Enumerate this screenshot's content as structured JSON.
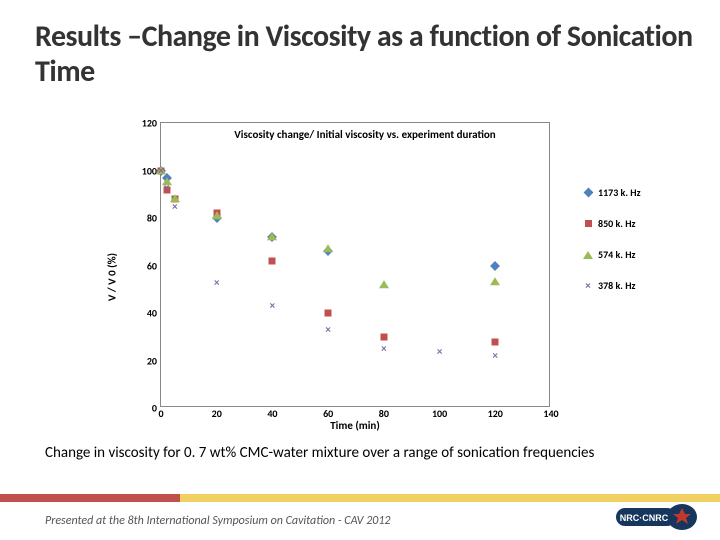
{
  "title": "Results –Change in Viscosity as a function of Sonication Time",
  "chart": {
    "type": "scatter",
    "inner_title": "Viscosity change/ Initial viscosity vs. experiment duration",
    "x_label": "Time (min)",
    "y_label": "V / V 0 (%)",
    "xlim": [
      0,
      140
    ],
    "ylim": [
      0,
      120
    ],
    "x_ticks": [
      0,
      20,
      40,
      60,
      80,
      100,
      120,
      140
    ],
    "y_ticks": [
      0,
      20,
      40,
      60,
      80,
      100,
      120
    ],
    "background_color": "#ffffff",
    "border_color": "#888888",
    "series": [
      {
        "name": "1173 k. Hz",
        "marker": "diamond",
        "color": "#4f81bd",
        "points": [
          [
            0,
            100
          ],
          [
            2,
            97
          ],
          [
            20,
            80
          ],
          [
            40,
            72
          ],
          [
            60,
            66
          ],
          [
            120,
            60
          ]
        ]
      },
      {
        "name": "850 k. Hz",
        "marker": "square",
        "color": "#c0504d",
        "points": [
          [
            0,
            100
          ],
          [
            2,
            92
          ],
          [
            5,
            88
          ],
          [
            20,
            82
          ],
          [
            40,
            62
          ],
          [
            60,
            40
          ],
          [
            80,
            30
          ],
          [
            120,
            28
          ]
        ]
      },
      {
        "name": "574 k. Hz",
        "marker": "triangle",
        "color": "#9bbb59",
        "points": [
          [
            0,
            100
          ],
          [
            2,
            95
          ],
          [
            5,
            88
          ],
          [
            20,
            81
          ],
          [
            40,
            72
          ],
          [
            60,
            67
          ],
          [
            80,
            52
          ],
          [
            120,
            53
          ]
        ]
      },
      {
        "name": "378 k. Hz",
        "marker": "cross",
        "color": "#8064a2",
        "points": [
          [
            0,
            100
          ],
          [
            2,
            93
          ],
          [
            5,
            85
          ],
          [
            20,
            53
          ],
          [
            40,
            43
          ],
          [
            60,
            33
          ],
          [
            80,
            25
          ],
          [
            100,
            24
          ],
          [
            120,
            22
          ]
        ]
      }
    ]
  },
  "caption": "Change in viscosity for 0. 7 wt% CMC-water mixture over a range of sonication frequencies",
  "footer": "Presented at the 8th International Symposium on Cavitation - CAV 2012",
  "stripe_colors": {
    "left": "#c0504d",
    "right": "#f0d060"
  },
  "logo": {
    "bg": "#17365d",
    "leaf": "#c0392b",
    "text": "NRC·CNRC"
  }
}
